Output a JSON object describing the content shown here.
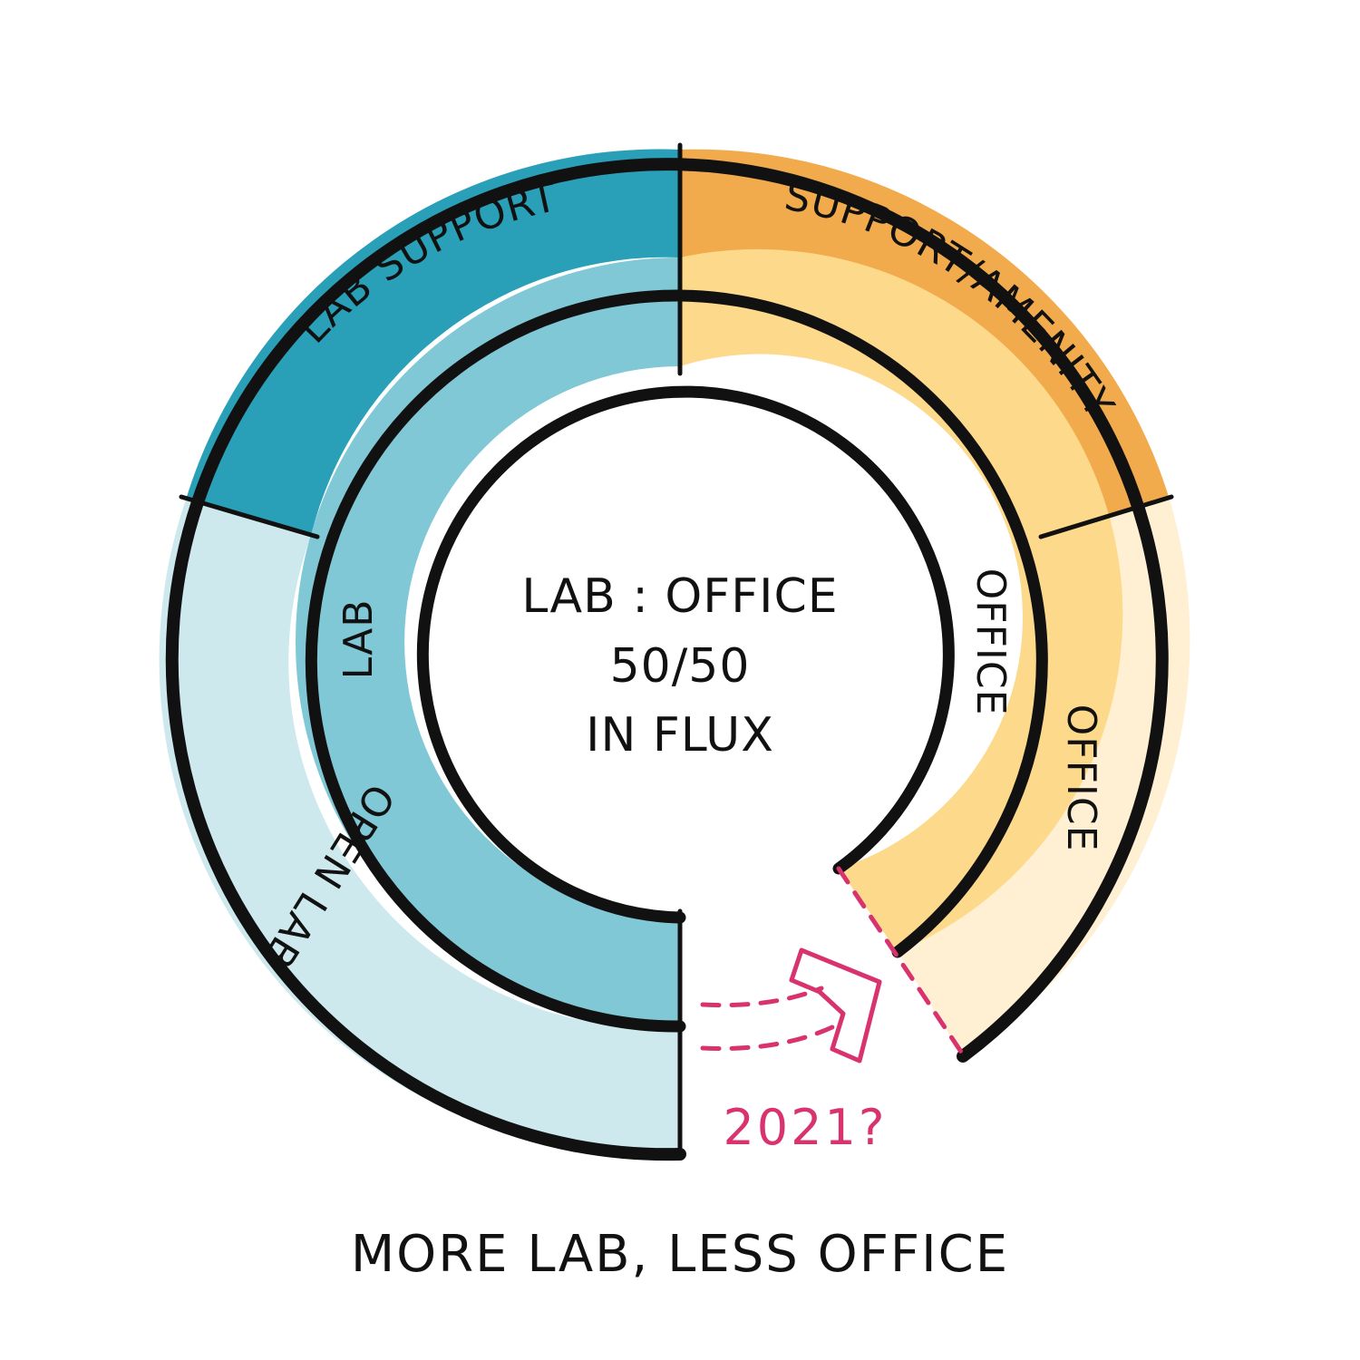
{
  "center": {
    "line1": "LAB : OFFICE",
    "line2": "50/50",
    "line3": "IN FLUX"
  },
  "outer_ring": {
    "lab_support": "LAB SUPPORT",
    "support_amenity": "SUPPORT/AMENITY",
    "office": "OFFICE",
    "open_lab": "OPEN LAB"
  },
  "inner_ring": {
    "lab": "LAB",
    "office": "OFFICE"
  },
  "annotation": {
    "year": "2021?"
  },
  "caption": "MORE LAB, LESS OFFICE",
  "colors": {
    "lab_support": "#2aa0b8",
    "lab": "#80c8d6",
    "open_lab": "#cde9ee",
    "support_amenity": "#f2ab4c",
    "office_inner": "#fdd98b",
    "office_outer": "#fff0d4",
    "outline": "#111111",
    "accent": "#d8336e"
  }
}
